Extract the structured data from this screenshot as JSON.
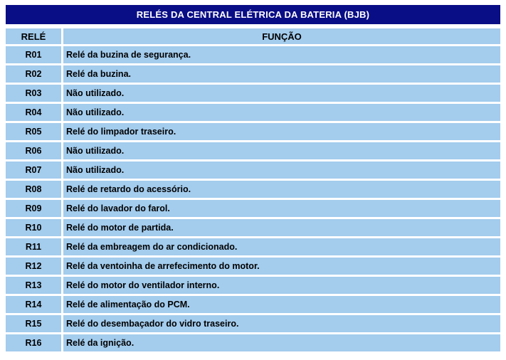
{
  "title": "RELÉS DA CENTRAL ELÉTRICA DA BATERIA (BJB)",
  "table": {
    "headers": {
      "relay": "RELÉ",
      "function": "FUNÇÃO"
    },
    "rows": [
      {
        "relay": "R01",
        "function": "Relé da buzina de segurança."
      },
      {
        "relay": "R02",
        "function": "Relé da buzina."
      },
      {
        "relay": "R03",
        "function": "Não utilizado."
      },
      {
        "relay": "R04",
        "function": "Não utilizado."
      },
      {
        "relay": "R05",
        "function": "Relé do limpador traseiro."
      },
      {
        "relay": "R06",
        "function": "Não utilizado."
      },
      {
        "relay": "R07",
        "function": "Não utilizado."
      },
      {
        "relay": "R08",
        "function": "Relé de retardo do acessório."
      },
      {
        "relay": "R09",
        "function": "Relé do lavador do farol."
      },
      {
        "relay": "R10",
        "function": "Relé do motor de partida."
      },
      {
        "relay": "R11",
        "function": "Relé da embreagem do ar condicionado."
      },
      {
        "relay": "R12",
        "function": "Relé da ventoinha de arrefecimento do motor."
      },
      {
        "relay": "R13",
        "function": "Relé do motor do ventilador interno."
      },
      {
        "relay": "R14",
        "function": "Relé de alimentação do PCM."
      },
      {
        "relay": "R15",
        "function": "Relé do desembaçador do vidro traseiro."
      },
      {
        "relay": "R16",
        "function": "Relé da ignição."
      }
    ]
  },
  "colors": {
    "title_bg": "#0a0e86",
    "title_text": "#ffffff",
    "cell_bg": "#a3cced",
    "cell_text": "#000000",
    "page_bg": "#ffffff"
  }
}
